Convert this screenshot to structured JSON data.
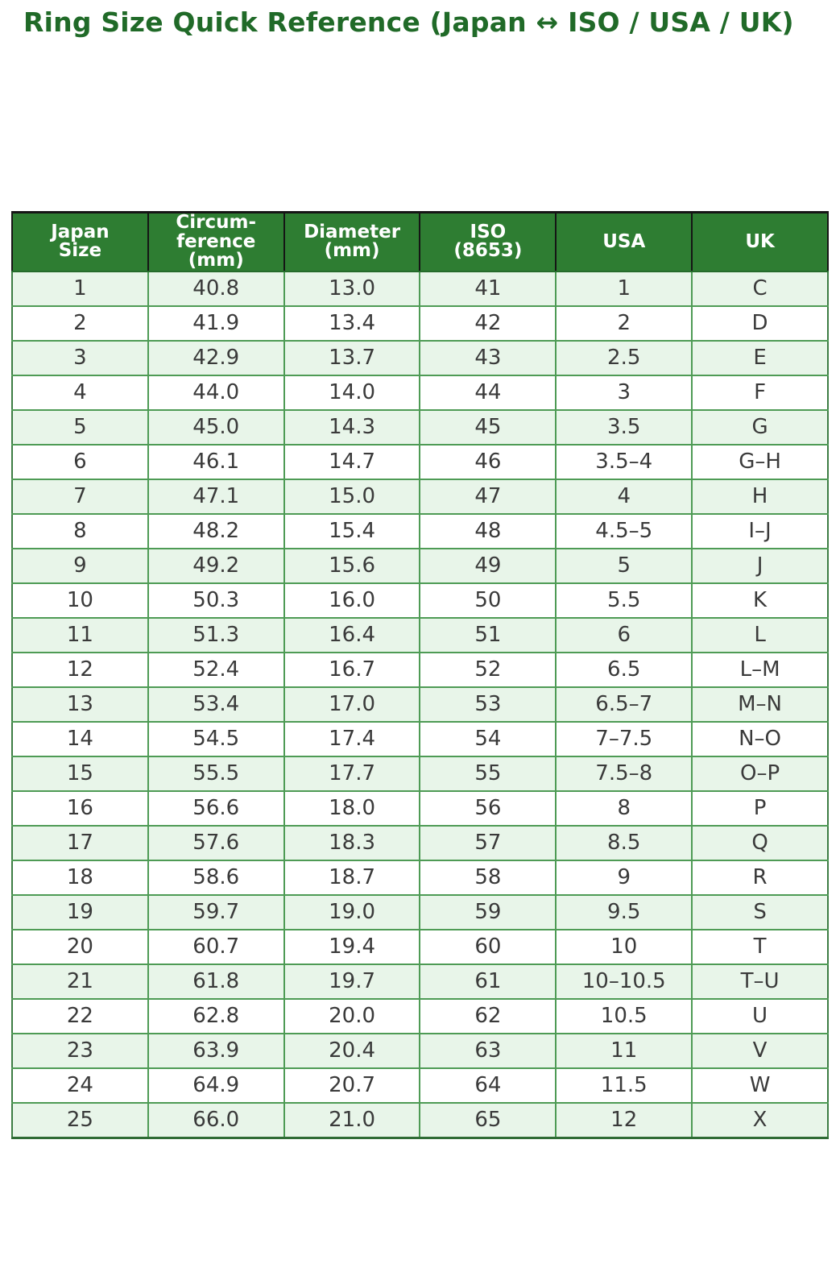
{
  "title": {
    "text": "Ring Size Quick Reference (Japan ↔ ISO / USA / UK)",
    "color": "#206a28"
  },
  "table": {
    "colors": {
      "header_bg": "#2e7d32",
      "header_text": "#ffffff",
      "stripe_row_bg": "#e8f5e9",
      "plain_row_bg": "#ffffff",
      "grid_line": "#4e9b55",
      "header_divider": "#151515"
    },
    "column_keys": [
      "japan-size",
      "circumference-mm",
      "diameter-mm",
      "iso-8653",
      "usa",
      "uk"
    ],
    "columns": [
      [
        "Japan",
        "Size"
      ],
      [
        "Circum-",
        "ference",
        "(mm)"
      ],
      [
        "Diameter",
        "(mm)"
      ],
      [
        "ISO",
        "(8653)"
      ],
      [
        "USA"
      ],
      [
        "UK"
      ]
    ],
    "rows": [
      [
        "1",
        "40.8",
        "13.0",
        "41",
        "1",
        "C"
      ],
      [
        "2",
        "41.9",
        "13.4",
        "42",
        "2",
        "D"
      ],
      [
        "3",
        "42.9",
        "13.7",
        "43",
        "2.5",
        "E"
      ],
      [
        "4",
        "44.0",
        "14.0",
        "44",
        "3",
        "F"
      ],
      [
        "5",
        "45.0",
        "14.3",
        "45",
        "3.5",
        "G"
      ],
      [
        "6",
        "46.1",
        "14.7",
        "46",
        "3.5–4",
        "G–H"
      ],
      [
        "7",
        "47.1",
        "15.0",
        "47",
        "4",
        "H"
      ],
      [
        "8",
        "48.2",
        "15.4",
        "48",
        "4.5–5",
        "I–J"
      ],
      [
        "9",
        "49.2",
        "15.6",
        "49",
        "5",
        "J"
      ],
      [
        "10",
        "50.3",
        "16.0",
        "50",
        "5.5",
        "K"
      ],
      [
        "11",
        "51.3",
        "16.4",
        "51",
        "6",
        "L"
      ],
      [
        "12",
        "52.4",
        "16.7",
        "52",
        "6.5",
        "L–M"
      ],
      [
        "13",
        "53.4",
        "17.0",
        "53",
        "6.5–7",
        "M–N"
      ],
      [
        "14",
        "54.5",
        "17.4",
        "54",
        "7–7.5",
        "N–O"
      ],
      [
        "15",
        "55.5",
        "17.7",
        "55",
        "7.5–8",
        "O–P"
      ],
      [
        "16",
        "56.6",
        "18.0",
        "56",
        "8",
        "P"
      ],
      [
        "17",
        "57.6",
        "18.3",
        "57",
        "8.5",
        "Q"
      ],
      [
        "18",
        "58.6",
        "18.7",
        "58",
        "9",
        "R"
      ],
      [
        "19",
        "59.7",
        "19.0",
        "59",
        "9.5",
        "S"
      ],
      [
        "20",
        "60.7",
        "19.4",
        "60",
        "10",
        "T"
      ],
      [
        "21",
        "61.8",
        "19.7",
        "61",
        "10–10.5",
        "T–U"
      ],
      [
        "22",
        "62.8",
        "20.0",
        "62",
        "10.5",
        "U"
      ],
      [
        "23",
        "63.9",
        "20.4",
        "63",
        "11",
        "V"
      ],
      [
        "24",
        "64.9",
        "20.7",
        "64",
        "11.5",
        "W"
      ],
      [
        "25",
        "66.0",
        "21.0",
        "65",
        "12",
        "X"
      ]
    ]
  },
  "chart_data": {
    "type": "table",
    "title": "Ring Size Quick Reference (Japan ↔ ISO / USA / UK)",
    "columns": [
      "Japan Size",
      "Circumference (mm)",
      "Diameter (mm)",
      "ISO (8653)",
      "USA",
      "UK"
    ],
    "rows": [
      [
        1,
        40.8,
        13.0,
        41,
        "1",
        "C"
      ],
      [
        2,
        41.9,
        13.4,
        42,
        "2",
        "D"
      ],
      [
        3,
        42.9,
        13.7,
        43,
        "2.5",
        "E"
      ],
      [
        4,
        44.0,
        14.0,
        44,
        "3",
        "F"
      ],
      [
        5,
        45.0,
        14.3,
        45,
        "3.5",
        "G"
      ],
      [
        6,
        46.1,
        14.7,
        46,
        "3.5–4",
        "G–H"
      ],
      [
        7,
        47.1,
        15.0,
        47,
        "4",
        "H"
      ],
      [
        8,
        48.2,
        15.4,
        48,
        "4.5–5",
        "I–J"
      ],
      [
        9,
        49.2,
        15.6,
        49,
        "5",
        "J"
      ],
      [
        10,
        50.3,
        16.0,
        50,
        "5.5",
        "K"
      ],
      [
        11,
        51.3,
        16.4,
        51,
        "6",
        "L"
      ],
      [
        12,
        52.4,
        16.7,
        52,
        "6.5",
        "L–M"
      ],
      [
        13,
        53.4,
        17.0,
        53,
        "6.5–7",
        "M–N"
      ],
      [
        14,
        54.5,
        17.4,
        54,
        "7–7.5",
        "N–O"
      ],
      [
        15,
        55.5,
        17.7,
        55,
        "7.5–8",
        "O–P"
      ],
      [
        16,
        56.6,
        18.0,
        56,
        "8",
        "P"
      ],
      [
        17,
        57.6,
        18.3,
        57,
        "8.5",
        "Q"
      ],
      [
        18,
        58.6,
        18.7,
        58,
        "9",
        "R"
      ],
      [
        19,
        59.7,
        19.0,
        59,
        "9.5",
        "S"
      ],
      [
        20,
        60.7,
        19.4,
        60,
        "10",
        "T"
      ],
      [
        21,
        61.8,
        19.7,
        61,
        "10–10.5",
        "T–U"
      ],
      [
        22,
        62.8,
        20.0,
        62,
        "10.5",
        "U"
      ],
      [
        23,
        63.9,
        20.4,
        63,
        "11",
        "V"
      ],
      [
        24,
        64.9,
        20.7,
        64,
        "11.5",
        "W"
      ],
      [
        25,
        66.0,
        21.0,
        65,
        "12",
        "X"
      ]
    ]
  }
}
